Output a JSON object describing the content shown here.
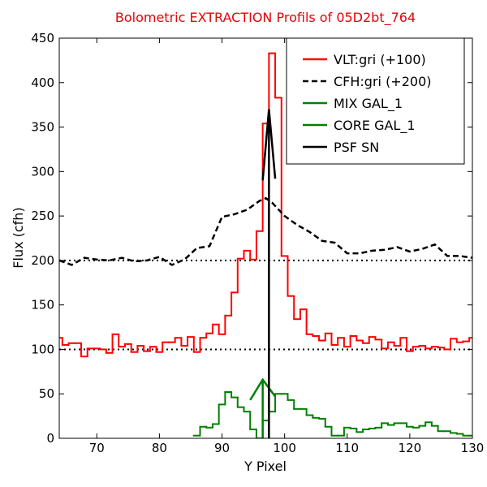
{
  "chart_data": {
    "type": "line",
    "title": "Bolometric EXTRACTION Profils of 05D2bt_764",
    "title_color": "#e8000b",
    "xlabel": "Y Pixel",
    "ylabel": "Flux (cfh)",
    "xlim": [
      64,
      130
    ],
    "ylim": [
      0,
      450
    ],
    "xticks": [
      70,
      80,
      90,
      100,
      110,
      120,
      130
    ],
    "yticks": [
      0,
      50,
      100,
      150,
      200,
      250,
      300,
      350,
      400,
      450
    ],
    "hlines": [
      100,
      200
    ],
    "legend": "upper right",
    "series": [
      {
        "name": "VLT:gri (+100)",
        "color": "#ff0000",
        "style": "step",
        "x": [
          64,
          65,
          66,
          67,
          68,
          69,
          70,
          71,
          72,
          73,
          74,
          75,
          76,
          77,
          78,
          79,
          80,
          81,
          82,
          83,
          84,
          85,
          86,
          87,
          88,
          89,
          90,
          91,
          92,
          93,
          94,
          95,
          96,
          97,
          98,
          99,
          100,
          101,
          102,
          103,
          104,
          105,
          106,
          107,
          108,
          109,
          110,
          111,
          112,
          113,
          114,
          115,
          116,
          117,
          118,
          119,
          120,
          121,
          122,
          123,
          124,
          125,
          126,
          127,
          128,
          129,
          130
        ],
        "values": [
          113,
          105,
          107,
          107,
          92,
          101,
          101,
          100,
          96,
          117,
          103,
          106,
          97,
          104,
          98,
          103,
          97,
          108,
          108,
          113,
          104,
          114,
          97,
          113,
          118,
          128,
          117,
          138,
          164,
          202,
          211,
          201,
          233,
          354,
          433,
          383,
          205,
          160,
          134,
          145,
          117,
          115,
          110,
          118,
          105,
          113,
          103,
          115,
          110,
          107,
          114,
          111,
          101,
          108,
          104,
          113,
          98,
          103,
          104,
          101,
          103,
          102,
          100,
          112,
          108,
          109,
          113
        ]
      },
      {
        "name": "CFH:gri (+200)",
        "color": "#000000",
        "style": "dashed",
        "x": [
          64,
          66,
          68,
          70,
          72,
          74,
          76,
          78,
          80,
          82,
          84,
          86,
          88,
          90,
          92,
          94,
          96,
          97,
          98,
          100,
          102,
          104,
          106,
          108,
          110,
          112,
          114,
          116,
          118,
          120,
          122,
          124,
          126,
          128,
          130
        ],
        "values": [
          200,
          195,
          203,
          201,
          200,
          203,
          199,
          200,
          204,
          195,
          201,
          214,
          216,
          249,
          252,
          257,
          267,
          270,
          265,
          250,
          240,
          232,
          222,
          220,
          208,
          208,
          211,
          212,
          215,
          210,
          213,
          218,
          205,
          205,
          203
        ]
      },
      {
        "name": "MIX GAL_1",
        "color": "#008000",
        "style": "step",
        "x": [
          86,
          87,
          88,
          89,
          90,
          91,
          92,
          93,
          94,
          95,
          96,
          97,
          98,
          99,
          100,
          101,
          102,
          103,
          104,
          105,
          106,
          107,
          108,
          109,
          110,
          111,
          112,
          113,
          114,
          115,
          116,
          117,
          118,
          119,
          120,
          121,
          122,
          123,
          124,
          125,
          126,
          127,
          128,
          129,
          130
        ],
        "values": [
          3,
          13,
          12,
          16,
          38,
          52,
          46,
          35,
          30,
          10,
          0,
          20,
          30,
          50,
          50,
          43,
          33,
          33,
          26,
          23,
          22,
          13,
          3,
          3,
          12,
          11,
          7,
          10,
          11,
          12,
          17,
          15,
          17,
          17,
          13,
          12,
          14,
          18,
          14,
          8,
          8,
          6,
          5,
          3,
          3
        ]
      },
      {
        "name": "CORE GAL_1",
        "color": "#008000",
        "style": "solid",
        "x": [
          96.5,
          96.5,
          null,
          94.5,
          96.5,
          98.5
        ],
        "values": [
          0,
          66,
          null,
          43,
          66,
          47
        ]
      },
      {
        "name": "PSF SN",
        "color": "#000000",
        "style": "solid",
        "x": [
          97.5,
          97.5,
          null,
          96.5,
          97.5,
          98.5
        ],
        "values": [
          0,
          370,
          null,
          290,
          370,
          292
        ]
      }
    ]
  }
}
